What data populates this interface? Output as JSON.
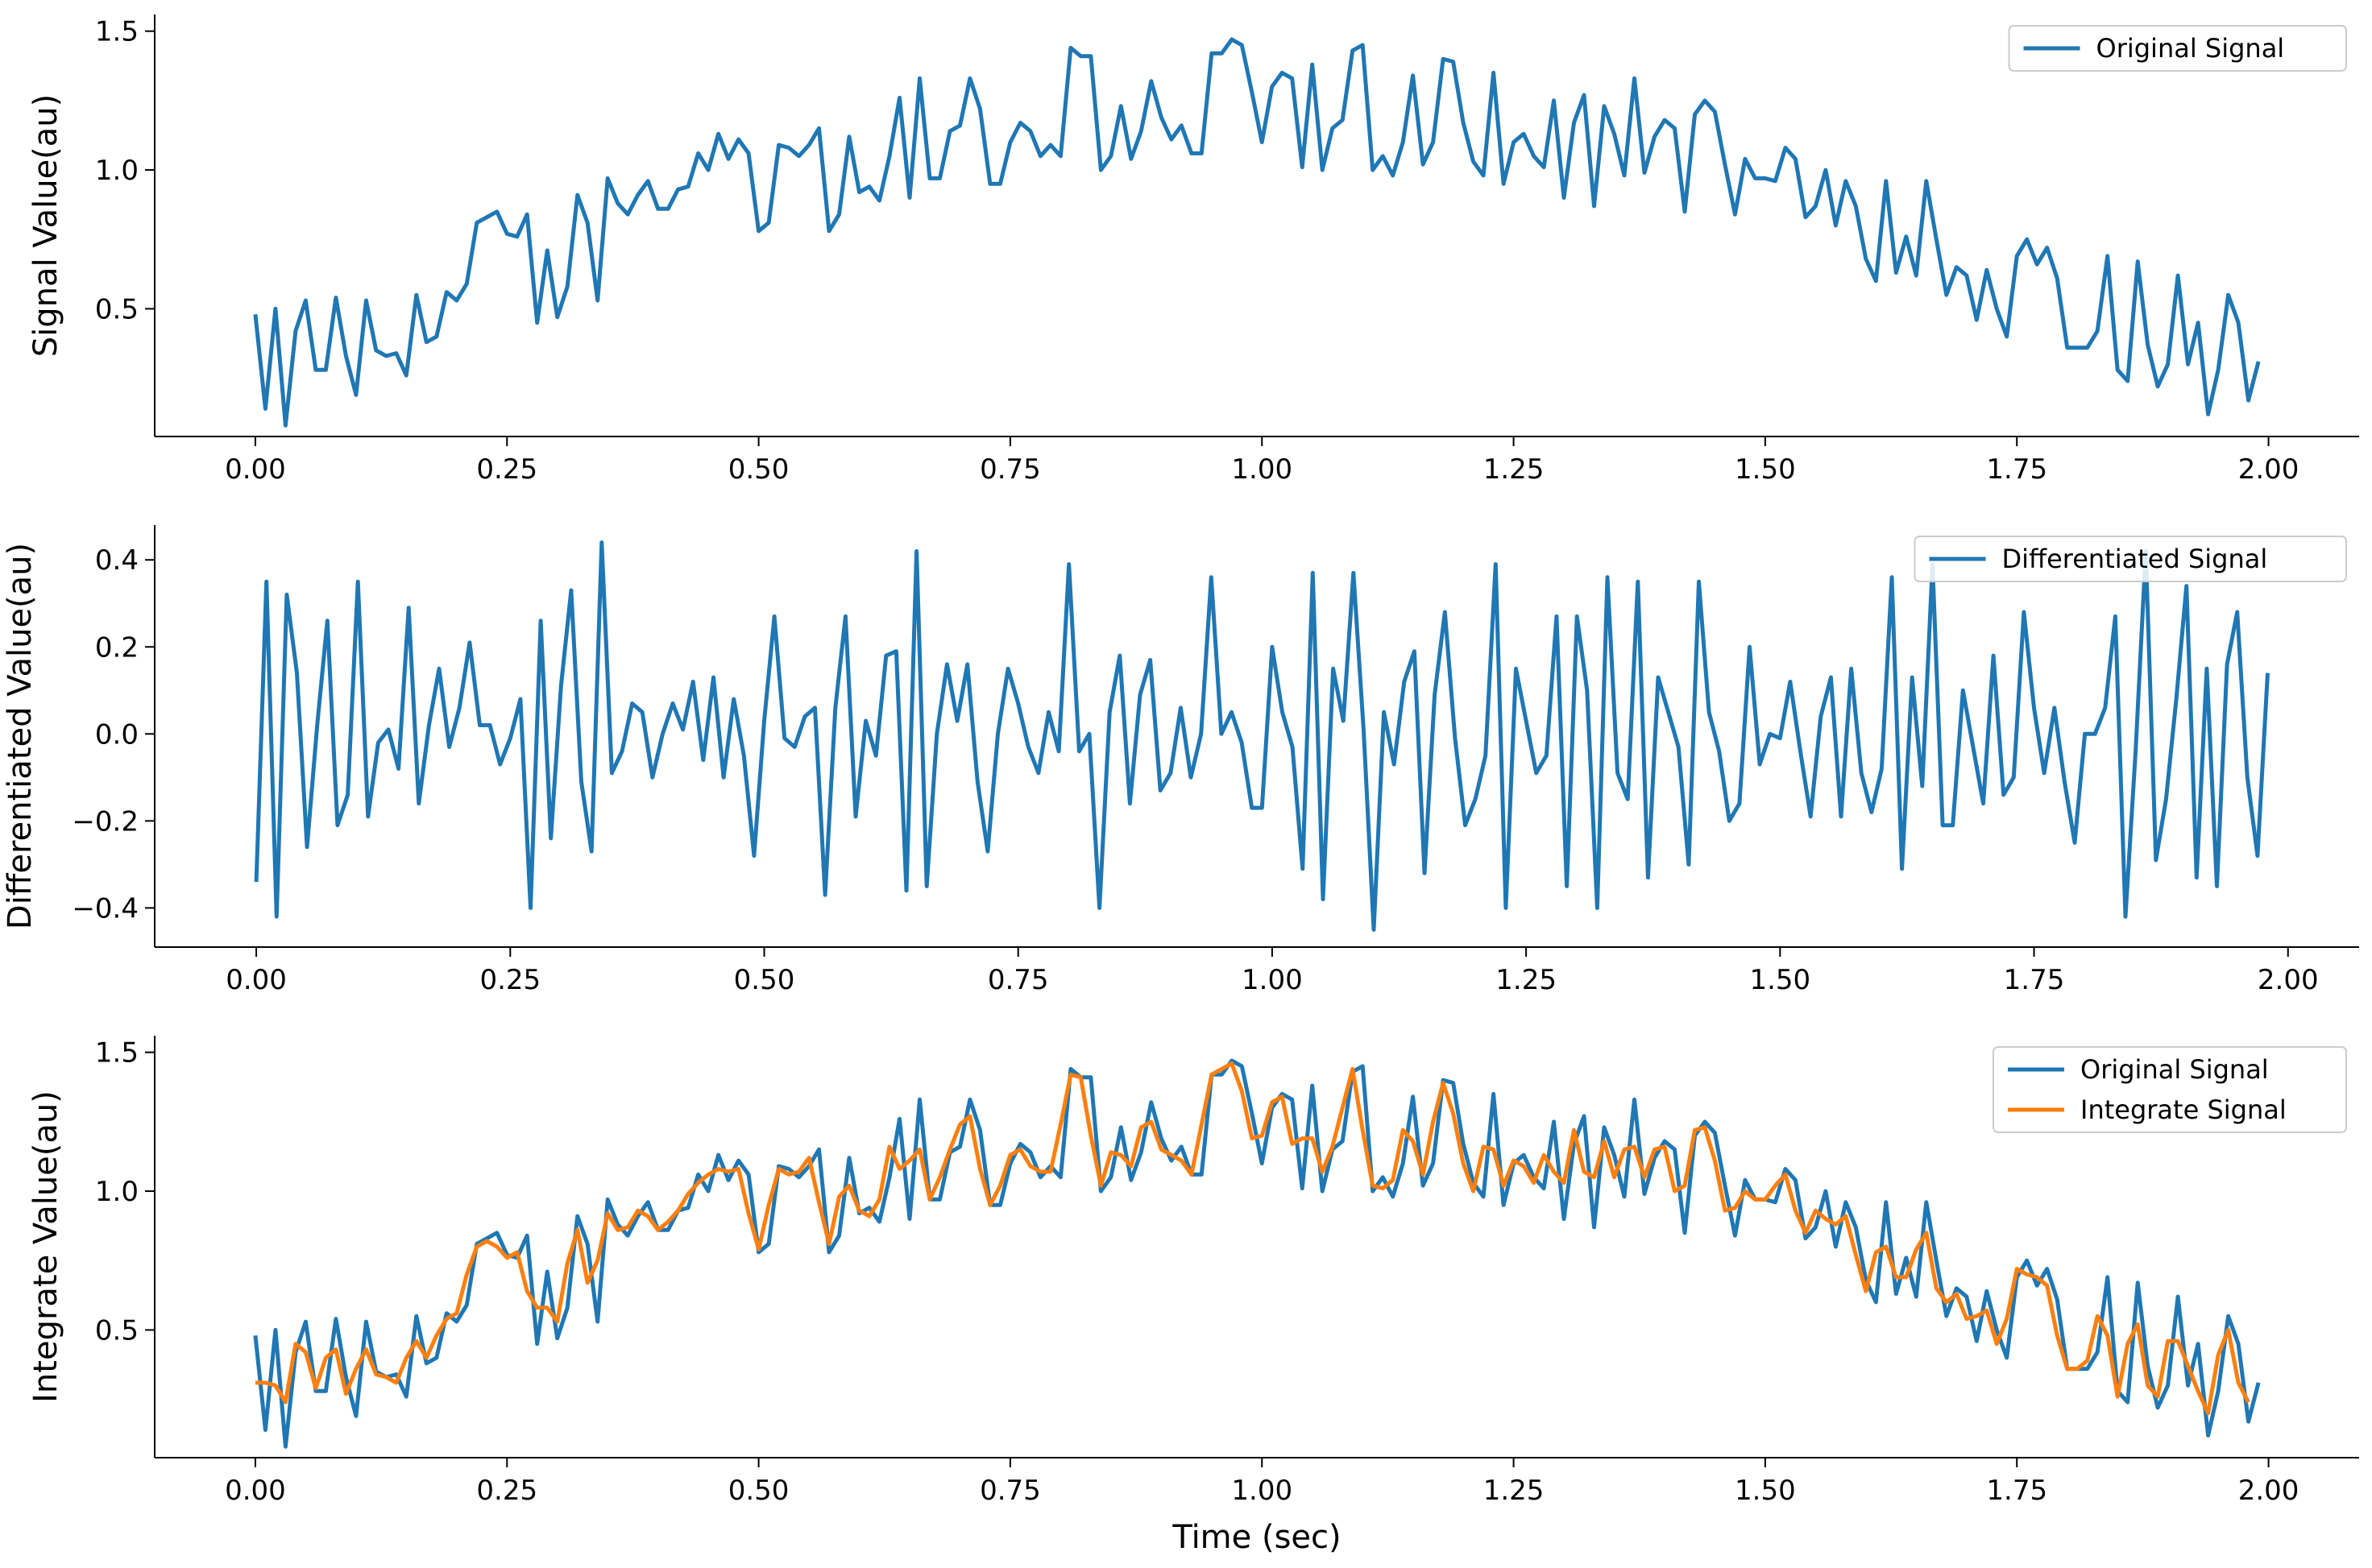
{
  "colors": {
    "blue": "#1f77b4",
    "orange": "#ff7f0e"
  },
  "chart_data": [
    {
      "type": "line",
      "xlabel": "",
      "ylabel": "Signal Value(au)",
      "xlim": [
        -0.1,
        2.09
      ],
      "ylim": [
        0.04,
        1.56
      ],
      "xticks": [
        0.0,
        0.25,
        0.5,
        0.75,
        1.0,
        1.25,
        1.5,
        1.75,
        2.0
      ],
      "xtick_labels": [
        "0.00",
        "0.25",
        "0.50",
        "0.75",
        "1.00",
        "1.25",
        "1.50",
        "1.75",
        "2.00"
      ],
      "yticks": [
        0.5,
        1.0,
        1.5
      ],
      "ytick_labels": [
        "0.5",
        "1.0",
        "1.5"
      ],
      "legend_position": "top-right",
      "x": {
        "start": 0.0,
        "step": 0.01
      },
      "series": [
        {
          "name": "Original Signal",
          "color": "#1f77b4",
          "values": [
            0.48,
            0.14,
            0.5,
            0.08,
            0.42,
            0.53,
            0.28,
            0.28,
            0.54,
            0.33,
            0.19,
            0.53,
            0.35,
            0.33,
            0.34,
            0.26,
            0.55,
            0.38,
            0.4,
            0.56,
            0.53,
            0.59,
            0.81,
            0.83,
            0.85,
            0.77,
            0.76,
            0.84,
            0.45,
            0.71,
            0.47,
            0.58,
            0.91,
            0.81,
            0.53,
            0.97,
            0.88,
            0.84,
            0.91,
            0.96,
            0.86,
            0.86,
            0.93,
            0.94,
            1.06,
            1.0,
            1.13,
            1.04,
            1.11,
            1.06,
            0.78,
            0.81,
            1.09,
            1.08,
            1.05,
            1.09,
            1.15,
            0.78,
            0.84,
            1.12,
            0.92,
            0.94,
            0.89,
            1.05,
            1.26,
            0.9,
            1.33,
            0.97,
            0.97,
            1.14,
            1.16,
            1.33,
            1.22,
            0.95,
            0.95,
            1.1,
            1.17,
            1.14,
            1.05,
            1.09,
            1.05,
            1.44,
            1.41,
            1.41,
            1.0,
            1.05,
            1.23,
            1.04,
            1.14,
            1.32,
            1.19,
            1.11,
            1.16,
            1.06,
            1.06,
            1.42,
            1.42,
            1.47,
            1.45,
            1.28,
            1.1,
            1.3,
            1.35,
            1.33,
            1.01,
            1.38,
            1.0,
            1.15,
            1.18,
            1.43,
            1.45,
            1.0,
            1.05,
            0.98,
            1.1,
            1.34,
            1.02,
            1.1,
            1.4,
            1.39,
            1.17,
            1.03,
            0.98,
            1.35,
            0.95,
            1.1,
            1.13,
            1.05,
            1.01,
            1.25,
            0.9,
            1.17,
            1.27,
            0.87,
            1.23,
            1.13,
            0.98,
            1.33,
            0.99,
            1.12,
            1.18,
            1.15,
            0.85,
            1.2,
            1.25,
            1.21,
            1.02,
            0.84,
            1.04,
            0.97,
            0.97,
            0.96,
            1.08,
            1.04,
            0.83,
            0.87,
            1.0,
            0.8,
            0.96,
            0.87,
            0.68,
            0.6,
            0.96,
            0.63,
            0.76,
            0.62,
            0.96,
            0.75,
            0.55,
            0.65,
            0.62,
            0.46,
            0.64,
            0.5,
            0.4,
            0.69,
            0.75,
            0.66,
            0.72,
            0.61,
            0.36,
            0.36,
            0.36,
            0.42,
            0.69,
            0.28,
            0.24,
            0.67,
            0.37,
            0.22,
            0.3,
            0.62,
            0.3,
            0.45,
            0.12,
            0.28,
            0.55,
            0.45,
            0.17,
            0.31
          ]
        }
      ]
    },
    {
      "type": "line",
      "xlabel": "",
      "ylabel": "Differentiated Value(au)",
      "xlim": [
        -0.1,
        2.07
      ],
      "ylim": [
        -0.49,
        0.48
      ],
      "xticks": [
        0.0,
        0.25,
        0.5,
        0.75,
        1.0,
        1.25,
        1.5,
        1.75,
        2.0
      ],
      "xtick_labels": [
        "0.00",
        "0.25",
        "0.50",
        "0.75",
        "1.00",
        "1.25",
        "1.50",
        "1.75",
        "2.00"
      ],
      "yticks": [
        -0.4,
        -0.2,
        0.0,
        0.2,
        0.4
      ],
      "ytick_labels": [
        "−0.4",
        "−0.2",
        "0.0",
        "0.2",
        "0.4"
      ],
      "legend_position": "top-right",
      "x": {
        "start": 0.0,
        "step": 0.01
      },
      "series": [
        {
          "name": "Differentiated Signal",
          "color": "#1f77b4",
          "values": [
            -0.34,
            0.35,
            -0.42,
            0.32,
            0.14,
            -0.26,
            0.02,
            0.26,
            -0.21,
            -0.14,
            0.35,
            -0.19,
            -0.02,
            0.01,
            -0.08,
            0.29,
            -0.16,
            0.02,
            0.15,
            -0.03,
            0.06,
            0.21,
            0.02,
            0.02,
            -0.07,
            -0.01,
            0.08,
            -0.4,
            0.26,
            -0.24,
            0.11,
            0.33,
            -0.11,
            -0.27,
            0.44,
            -0.09,
            -0.04,
            0.07,
            0.05,
            -0.1,
            0.0,
            0.07,
            0.01,
            0.12,
            -0.06,
            0.13,
            -0.1,
            0.08,
            -0.05,
            -0.28,
            0.03,
            0.27,
            -0.01,
            -0.03,
            0.04,
            0.06,
            -0.37,
            0.06,
            0.27,
            -0.19,
            0.03,
            -0.05,
            0.18,
            0.19,
            -0.36,
            0.42,
            -0.35,
            0.0,
            0.16,
            0.03,
            0.16,
            -0.11,
            -0.27,
            0.0,
            0.15,
            0.07,
            -0.03,
            -0.09,
            0.05,
            -0.04,
            0.39,
            -0.04,
            0.0,
            -0.4,
            0.05,
            0.18,
            -0.16,
            0.09,
            0.17,
            -0.13,
            -0.09,
            0.06,
            -0.1,
            0.0,
            0.36,
            0.0,
            0.05,
            -0.02,
            -0.17,
            -0.17,
            0.2,
            0.05,
            -0.03,
            -0.31,
            0.37,
            -0.38,
            0.15,
            0.03,
            0.37,
            0.01,
            -0.45,
            0.05,
            -0.07,
            0.12,
            0.19,
            -0.32,
            0.09,
            0.28,
            -0.01,
            -0.21,
            -0.15,
            -0.05,
            0.39,
            -0.4,
            0.15,
            0.03,
            -0.09,
            -0.05,
            0.27,
            -0.35,
            0.27,
            0.1,
            -0.4,
            0.36,
            -0.09,
            -0.15,
            0.35,
            -0.33,
            0.13,
            0.05,
            -0.03,
            -0.3,
            0.35,
            0.05,
            -0.04,
            -0.2,
            -0.16,
            0.2,
            -0.07,
            0.0,
            -0.01,
            0.12,
            -0.04,
            -0.19,
            0.04,
            0.13,
            -0.19,
            0.15,
            -0.09,
            -0.18,
            -0.08,
            0.36,
            -0.31,
            0.13,
            -0.12,
            0.39,
            -0.21,
            -0.21,
            0.1,
            -0.03,
            -0.16,
            0.18,
            -0.14,
            -0.1,
            0.28,
            0.06,
            -0.09,
            0.06,
            -0.11,
            -0.25,
            0.0,
            0.0,
            0.06,
            0.27,
            -0.42,
            -0.04,
            0.42,
            -0.29,
            -0.15,
            0.08,
            0.34,
            -0.33,
            0.15,
            -0.35,
            0.16,
            0.28,
            -0.1,
            -0.28,
            0.14
          ]
        }
      ]
    },
    {
      "type": "line",
      "xlabel": "Time (sec)",
      "ylabel": "Integrate Value(au)",
      "xlim": [
        -0.1,
        2.09
      ],
      "ylim": [
        0.04,
        1.56
      ],
      "xticks": [
        0.0,
        0.25,
        0.5,
        0.75,
        1.0,
        1.25,
        1.5,
        1.75,
        2.0
      ],
      "xtick_labels": [
        "0.00",
        "0.25",
        "0.50",
        "0.75",
        "1.00",
        "1.25",
        "1.50",
        "1.75",
        "2.00"
      ],
      "yticks": [
        0.5,
        1.0,
        1.5
      ],
      "ytick_labels": [
        "0.5",
        "1.0",
        "1.5"
      ],
      "legend_position": "top-right",
      "x": {
        "start": 0.0,
        "step": 0.01
      },
      "series": [
        {
          "name": "Original Signal",
          "color": "#1f77b4",
          "values": [
            0.48,
            0.14,
            0.5,
            0.08,
            0.42,
            0.53,
            0.28,
            0.28,
            0.54,
            0.33,
            0.19,
            0.53,
            0.35,
            0.33,
            0.34,
            0.26,
            0.55,
            0.38,
            0.4,
            0.56,
            0.53,
            0.59,
            0.81,
            0.83,
            0.85,
            0.77,
            0.76,
            0.84,
            0.45,
            0.71,
            0.47,
            0.58,
            0.91,
            0.81,
            0.53,
            0.97,
            0.88,
            0.84,
            0.91,
            0.96,
            0.86,
            0.86,
            0.93,
            0.94,
            1.06,
            1.0,
            1.13,
            1.04,
            1.11,
            1.06,
            0.78,
            0.81,
            1.09,
            1.08,
            1.05,
            1.09,
            1.15,
            0.78,
            0.84,
            1.12,
            0.92,
            0.94,
            0.89,
            1.05,
            1.26,
            0.9,
            1.33,
            0.97,
            0.97,
            1.14,
            1.16,
            1.33,
            1.22,
            0.95,
            0.95,
            1.1,
            1.17,
            1.14,
            1.05,
            1.09,
            1.05,
            1.44,
            1.41,
            1.41,
            1.0,
            1.05,
            1.23,
            1.04,
            1.14,
            1.32,
            1.19,
            1.11,
            1.16,
            1.06,
            1.06,
            1.42,
            1.42,
            1.47,
            1.45,
            1.28,
            1.1,
            1.3,
            1.35,
            1.33,
            1.01,
            1.38,
            1.0,
            1.15,
            1.18,
            1.43,
            1.45,
            1.0,
            1.05,
            0.98,
            1.1,
            1.34,
            1.02,
            1.1,
            1.4,
            1.39,
            1.17,
            1.03,
            0.98,
            1.35,
            0.95,
            1.1,
            1.13,
            1.05,
            1.01,
            1.25,
            0.9,
            1.17,
            1.27,
            0.87,
            1.23,
            1.13,
            0.98,
            1.33,
            0.99,
            1.12,
            1.18,
            1.15,
            0.85,
            1.2,
            1.25,
            1.21,
            1.02,
            0.84,
            1.04,
            0.97,
            0.97,
            0.96,
            1.08,
            1.04,
            0.83,
            0.87,
            1.0,
            0.8,
            0.96,
            0.87,
            0.68,
            0.6,
            0.96,
            0.63,
            0.76,
            0.62,
            0.96,
            0.75,
            0.55,
            0.65,
            0.62,
            0.46,
            0.64,
            0.5,
            0.4,
            0.69,
            0.75,
            0.66,
            0.72,
            0.61,
            0.36,
            0.36,
            0.36,
            0.42,
            0.69,
            0.28,
            0.24,
            0.67,
            0.37,
            0.22,
            0.3,
            0.62,
            0.3,
            0.45,
            0.12,
            0.28,
            0.55,
            0.45,
            0.17,
            0.31
          ]
        },
        {
          "name": "Integrate Signal",
          "color": "#ff7f0e",
          "values": [
            0.31,
            0.31,
            0.3,
            0.24,
            0.45,
            0.42,
            0.29,
            0.4,
            0.43,
            0.27,
            0.36,
            0.43,
            0.34,
            0.33,
            0.31,
            0.4,
            0.46,
            0.4,
            0.48,
            0.54,
            0.56,
            0.7,
            0.8,
            0.82,
            0.8,
            0.76,
            0.78,
            0.64,
            0.58,
            0.58,
            0.53,
            0.74,
            0.86,
            0.67,
            0.75,
            0.92,
            0.86,
            0.87,
            0.93,
            0.91,
            0.86,
            0.89,
            0.93,
            0.99,
            1.03,
            1.06,
            1.08,
            1.07,
            1.08,
            0.92,
            0.79,
            0.95,
            1.08,
            1.06,
            1.07,
            1.12,
            0.96,
            0.81,
            0.98,
            1.02,
            0.93,
            0.91,
            0.97,
            1.16,
            1.08,
            1.11,
            1.15,
            0.97,
            1.05,
            1.15,
            1.24,
            1.27,
            1.08,
            0.95,
            1.02,
            1.13,
            1.15,
            1.09,
            1.07,
            1.07,
            1.24,
            1.42,
            1.41,
            1.2,
            1.02,
            1.14,
            1.13,
            1.09,
            1.23,
            1.25,
            1.15,
            1.13,
            1.11,
            1.06,
            1.24,
            1.42,
            1.44,
            1.46,
            1.36,
            1.19,
            1.2,
            1.32,
            1.34,
            1.17,
            1.19,
            1.19,
            1.07,
            1.16,
            1.3,
            1.44,
            1.22,
            1.02,
            1.01,
            1.04,
            1.22,
            1.18,
            1.06,
            1.25,
            1.39,
            1.28,
            1.1,
            1.0,
            1.16,
            1.15,
            1.02,
            1.11,
            1.09,
            1.03,
            1.13,
            1.07,
            1.03,
            1.22,
            1.07,
            1.05,
            1.18,
            1.05,
            1.15,
            1.16,
            1.05,
            1.15,
            1.16,
            1.0,
            1.02,
            1.22,
            1.23,
            1.11,
            0.93,
            0.94,
            1.0,
            0.97,
            0.97,
            1.02,
            1.06,
            0.93,
            0.85,
            0.93,
            0.9,
            0.88,
            0.91,
            0.77,
            0.64,
            0.78,
            0.8,
            0.69,
            0.69,
            0.79,
            0.85,
            0.65,
            0.6,
            0.63,
            0.54,
            0.55,
            0.57,
            0.45,
            0.54,
            0.72,
            0.7,
            0.69,
            0.66,
            0.48,
            0.36,
            0.36,
            0.39,
            0.55,
            0.48,
            0.26,
            0.45,
            0.52,
            0.3,
            0.26,
            0.46,
            0.46,
            0.37,
            0.28,
            0.2,
            0.41,
            0.5,
            0.31,
            0.24
          ]
        }
      ]
    }
  ]
}
